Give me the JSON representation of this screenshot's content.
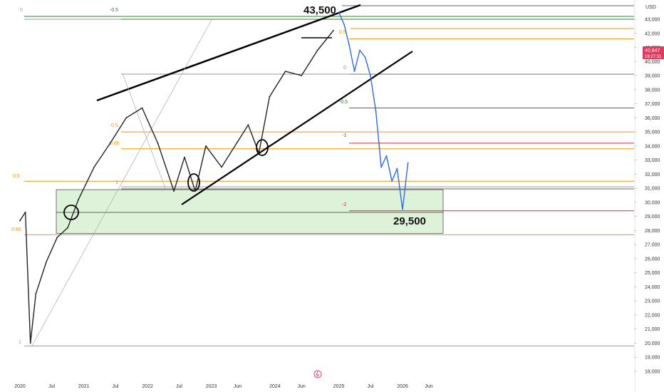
{
  "chart_data": {
    "type": "line",
    "currency": "USD",
    "ylim": [
      18000,
      44000
    ],
    "y_ticks": [
      "18,000",
      "19,000",
      "20,000",
      "21,000",
      "22,000",
      "23,000",
      "24,000",
      "25,000",
      "26,000",
      "27,000",
      "28,000",
      "29,000",
      "30,000",
      "31,000",
      "32,000",
      "33,000",
      "34,000",
      "35,000",
      "36,000",
      "37,000",
      "38,000",
      "39,000",
      "40,000",
      "41,000",
      "42,000",
      "43,000"
    ],
    "x_ticks": [
      "2020",
      "Jul",
      "2021",
      "Jul",
      "2022",
      "Jul",
      "2023",
      "Jun",
      "2024",
      "Jun",
      "2025",
      "Jul",
      "2026",
      "Jun"
    ],
    "price_badge": {
      "value": "40,847",
      "countdown": "18:27:31",
      "color": "#e03a5c"
    },
    "series": [
      {
        "color": "#222222",
        "x": [
          "2020-01",
          "2020-02",
          "2020-03",
          "2020-04",
          "2020-06",
          "2020-08",
          "2020-10",
          "2020-12",
          "2021-03",
          "2021-06",
          "2021-09",
          "2021-12",
          "2022-03",
          "2022-06",
          "2022-08",
          "2022-10",
          "2022-12",
          "2023-03",
          "2023-06",
          "2023-08",
          "2023-10",
          "2023-12",
          "2024-03",
          "2024-06",
          "2024-09",
          "2024-12"
        ],
        "values": [
          28700,
          29300,
          20000,
          23500,
          25800,
          27500,
          28200,
          30200,
          32500,
          34200,
          36000,
          36700,
          34200,
          30800,
          33200,
          30800,
          34000,
          32500,
          34300,
          35500,
          33500,
          37500,
          39300,
          39000,
          40800,
          42200
        ]
      },
      {
        "color": "#2f6ae0",
        "x": [
          "2025-01",
          "2025-02",
          "2025-03",
          "2025-04",
          "2025-05",
          "2025-06",
          "2025-07",
          "2025-08",
          "2025-09",
          "2025-10",
          "2025-11",
          "2025-12",
          "2026-01",
          "2026-02"
        ],
        "values": [
          43500,
          42600,
          41200,
          39300,
          40800,
          40300,
          39000,
          36500,
          32500,
          33300,
          31500,
          32400,
          29500,
          32800
        ]
      }
    ],
    "fib_levels": [
      {
        "label": "0",
        "value": 43000,
        "color": "#999999"
      },
      {
        "label": "-0.5",
        "value": 43000,
        "color": "#2e7d32"
      },
      {
        "label": "0.5",
        "value": 35000,
        "color": "#f0940c"
      },
      {
        "label": "0.66",
        "value": 33800,
        "color": "#f0940c"
      },
      {
        "label": "0.5",
        "value": 31500,
        "color": "#f0940c"
      },
      {
        "label": "0.66",
        "value": 27700,
        "color": "#f0940c"
      },
      {
        "label": "1",
        "value": 31100,
        "color": "#999999"
      },
      {
        "label": "1",
        "value": 19800,
        "color": "#999999"
      },
      {
        "label": "0",
        "value": 39100,
        "color": "#999999"
      },
      {
        "label": "-0.5",
        "value": 36700,
        "color": "#2e7d32"
      },
      {
        "label": "0.5",
        "value": 41600,
        "color": "#f0940c"
      },
      {
        "label": "-1",
        "value": 34200,
        "color": "#d32f2f"
      },
      {
        "label": "-2",
        "value": 29400,
        "color": "#d32f2f"
      }
    ],
    "support_zone": {
      "from": 27800,
      "to": 30900
    },
    "annotations": [
      {
        "text": "43,500",
        "value": 43500
      },
      {
        "text": "29,500",
        "value": 29500
      }
    ]
  },
  "icons": {
    "logo": "tradingview-logo-icon"
  }
}
